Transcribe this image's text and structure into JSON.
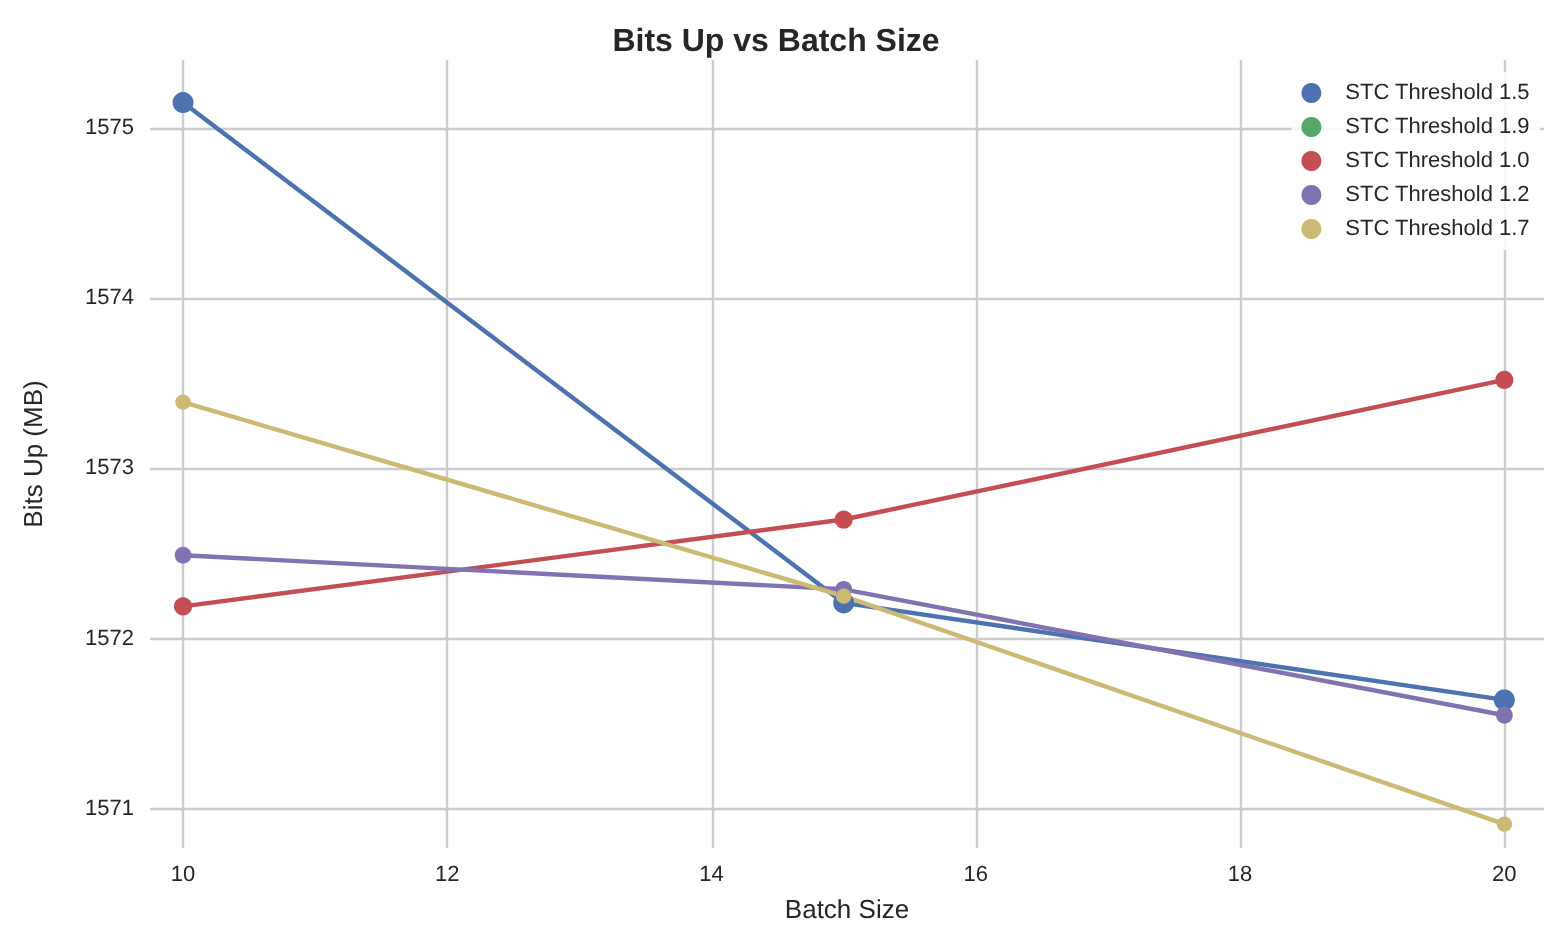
{
  "chart_data": {
    "type": "line",
    "title": "Bits Up vs Batch Size",
    "xlabel": "Batch Size",
    "ylabel": "Bits Up (MB)",
    "x": [
      10,
      15,
      20
    ],
    "series": [
      {
        "name": "STC Threshold 1.5",
        "color": "#4c72b0",
        "values": [
          1575.15,
          1572.21,
          1571.64
        ]
      },
      {
        "name": "STC Threshold 1.9",
        "color": "#55a868",
        "values": [
          null,
          null,
          null
        ]
      },
      {
        "name": "STC Threshold 1.0",
        "color": "#c44e52",
        "values": [
          1572.19,
          1572.7,
          1573.52
        ]
      },
      {
        "name": "STC Threshold 1.2",
        "color": "#8172b2",
        "values": [
          1572.49,
          1572.29,
          1571.55
        ]
      },
      {
        "name": "STC Threshold 1.7",
        "color": "#ccb974",
        "values": [
          1573.39,
          1572.25,
          1570.91
        ]
      }
    ],
    "xlim": [
      9.75,
      20.3
    ],
    "xticks": [
      10,
      12,
      14,
      16,
      18,
      20
    ],
    "ylim": [
      1570.77,
      1575.4
    ],
    "yticks": [
      1571,
      1572,
      1573,
      1574,
      1575
    ],
    "grid": true,
    "legend": "top right",
    "marker": "circle",
    "line_style": "solid"
  }
}
